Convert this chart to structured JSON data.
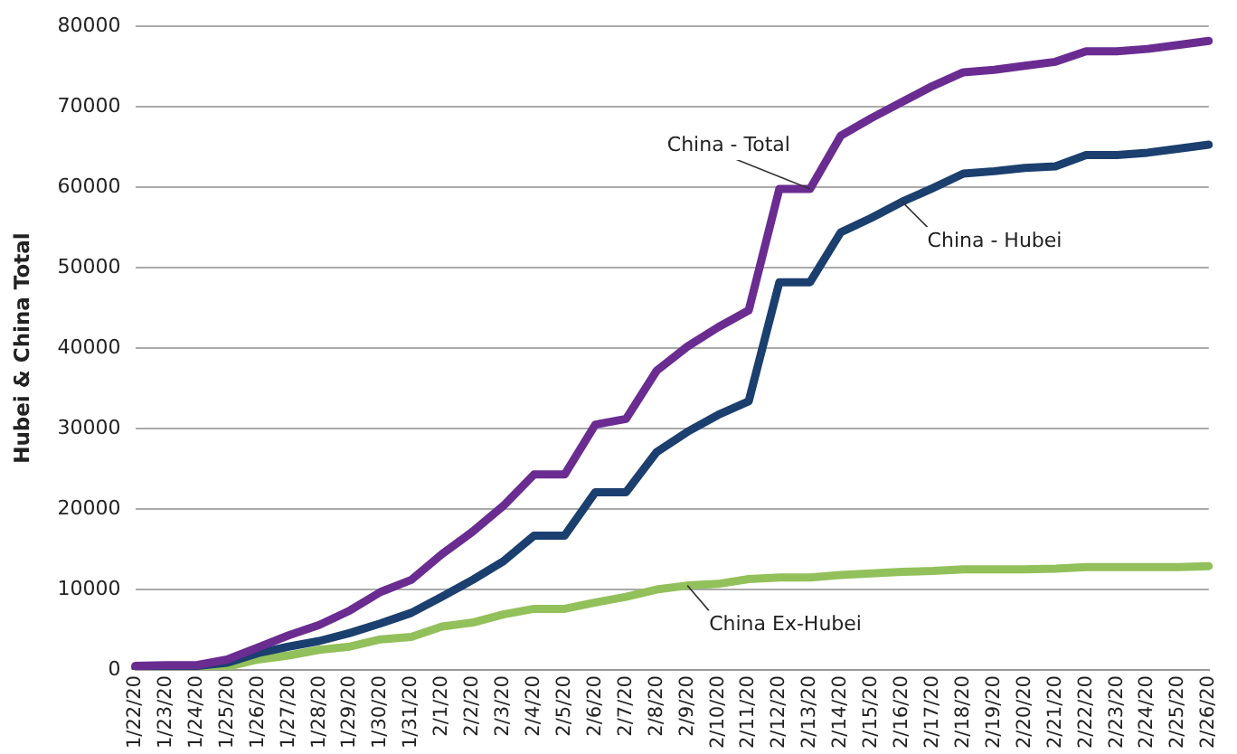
{
  "chart_data": {
    "type": "line",
    "ylabel": "Hubei & China Total",
    "categories": [
      "1/22/20",
      "1/23/20",
      "1/24/20",
      "1/25/20",
      "1/26/20",
      "1/27/20",
      "1/28/20",
      "1/29/20",
      "1/30/20",
      "1/31/20",
      "2/1/20",
      "2/2/20",
      "2/3/20",
      "2/4/20",
      "2/5/20",
      "2/6/20",
      "2/7/20",
      "2/8/20",
      "2/9/20",
      "2/10/20",
      "2/11/20",
      "2/12/20",
      "2/13/20",
      "2/14/20",
      "2/15/20",
      "2/16/20",
      "2/17/20",
      "2/18/20",
      "2/19/20",
      "2/20/20",
      "2/21/20",
      "2/22/20",
      "2/23/20",
      "2/24/20",
      "2/25/20",
      "2/26/20"
    ],
    "series": [
      {
        "name": "China - Total",
        "color": "#6a2c91",
        "values": [
          500,
          600,
          600,
          1300,
          2800,
          4300,
          5600,
          7400,
          9700,
          11200,
          14400,
          17200,
          20400,
          24300,
          24300,
          30500,
          31200,
          37200,
          40200,
          42600,
          44700,
          59800,
          59800,
          66400,
          68600,
          70600,
          72600,
          74300,
          74600,
          75100,
          75600,
          76900,
          76900,
          77200,
          77700,
          78200
        ]
      },
      {
        "name": "China - Hubei",
        "color": "#1b3f6e",
        "values": [
          400,
          500,
          500,
          900,
          2100,
          2900,
          3600,
          4600,
          5800,
          7100,
          9100,
          11200,
          13500,
          16700,
          16700,
          22100,
          22100,
          27100,
          29600,
          31700,
          33400,
          48200,
          48200,
          54400,
          56200,
          58200,
          59900,
          61700,
          62000,
          62400,
          62600,
          64000,
          64000,
          64300,
          64800,
          65300
        ]
      },
      {
        "name": "China Ex-Hubei",
        "color": "#92c05a",
        "values": [
          100,
          100,
          100,
          400,
          1300,
          1800,
          2500,
          2900,
          3800,
          4100,
          5400,
          5900,
          6900,
          7600,
          7600,
          8400,
          9100,
          10000,
          10500,
          10700,
          11300,
          11500,
          11500,
          11800,
          12000,
          12200,
          12300,
          12500,
          12500,
          12500,
          12600,
          12800,
          12800,
          12800,
          12800,
          12900
        ]
      }
    ],
    "ylim": [
      0,
      80000
    ],
    "yticks": [
      0,
      10000,
      20000,
      30000,
      40000,
      50000,
      60000,
      70000,
      80000
    ],
    "grid": "y",
    "legend": false,
    "marker": "none",
    "line_style": "solid"
  }
}
